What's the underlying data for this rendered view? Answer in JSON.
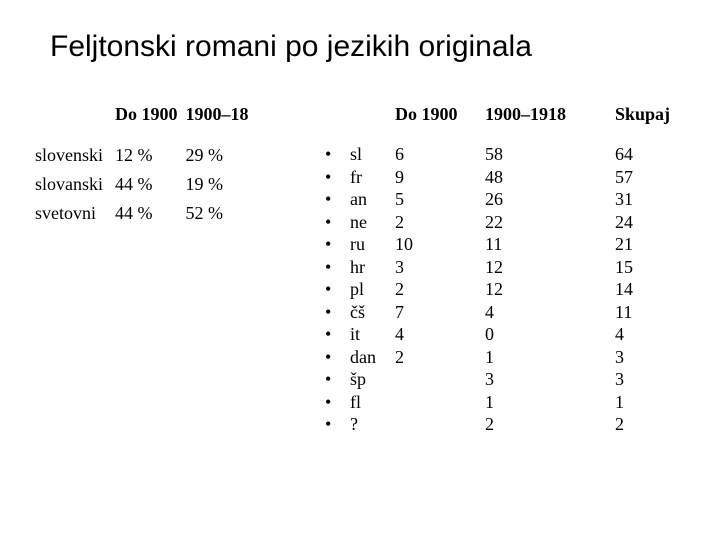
{
  "title": "Feljtonski romani po jezikih originala",
  "left_table": {
    "headers": {
      "col1": "",
      "col2": "Do 1900",
      "col3": "1900–18"
    },
    "rows": [
      {
        "label": "slovenski",
        "do1900": "12 %",
        "p1900_18": "29 %"
      },
      {
        "label": "slovanski",
        "do1900": "44 %",
        "p1900_18": "19 %"
      },
      {
        "label": "svetovni",
        "do1900": "44 %",
        "p1900_18": "52 %"
      }
    ]
  },
  "right_table": {
    "headers": {
      "col_b": "Do 1900",
      "col_c": "1900–1918",
      "col_d": "Skupaj"
    },
    "rows": [
      {
        "lang": "sl",
        "do1900": "6",
        "p1900_1918": "58",
        "sum": "64"
      },
      {
        "lang": "fr",
        "do1900": "9",
        "p1900_1918": "48",
        "sum": "57"
      },
      {
        "lang": "an",
        "do1900": "5",
        "p1900_1918": "26",
        "sum": "31"
      },
      {
        "lang": "ne",
        "do1900": "2",
        "p1900_1918": "22",
        "sum": "24"
      },
      {
        "lang": "ru",
        "do1900": "10",
        "p1900_1918": "11",
        "sum": "21"
      },
      {
        "lang": "hr",
        "do1900": "3",
        "p1900_1918": "12",
        "sum": "15"
      },
      {
        "lang": "pl",
        "do1900": "2",
        "p1900_1918": "12",
        "sum": "14"
      },
      {
        "lang": "čš",
        "do1900": "7",
        "p1900_1918": "4",
        "sum": "11"
      },
      {
        "lang": "it",
        "do1900": "4",
        "p1900_1918": "0",
        "sum": "4"
      },
      {
        "lang": "dan",
        "do1900": "2",
        "p1900_1918": "1",
        "sum": "3"
      },
      {
        "lang": "šp",
        "do1900": "",
        "p1900_1918": "3",
        "sum": "3"
      },
      {
        "lang": "fl",
        "do1900": "",
        "p1900_1918": "1",
        "sum": "1"
      },
      {
        "lang": "?",
        "do1900": "",
        "p1900_1918": "2",
        "sum": "2"
      }
    ]
  },
  "bullet_glyph": "•",
  "colors": {
    "text": "#000000",
    "background": "#ffffff"
  }
}
